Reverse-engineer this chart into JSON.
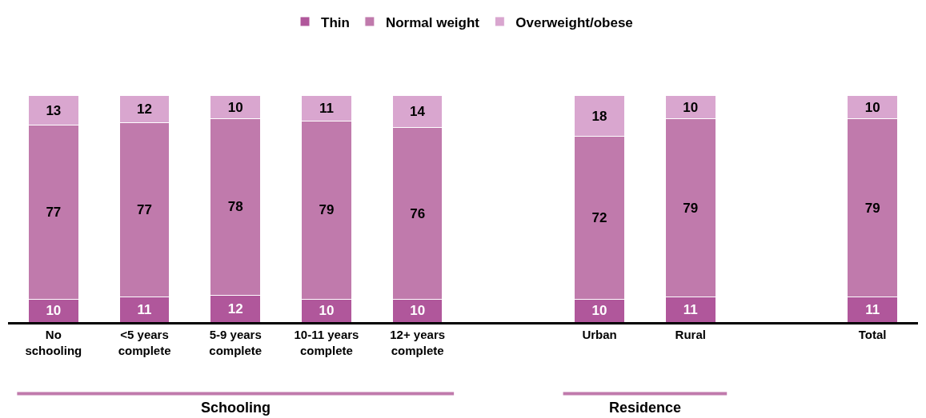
{
  "chart_data": {
    "type": "bar",
    "stacked": true,
    "categories": [
      "No\nschooling",
      "<5 years\ncomplete",
      "5-9 years\ncomplete",
      "10-11 years\ncomplete",
      "12+ years\ncomplete",
      null,
      "Urban",
      "Rural",
      null,
      "Total"
    ],
    "series": [
      {
        "name": "Thin",
        "color": "#b0579b",
        "values": [
          10,
          11,
          12,
          10,
          10,
          null,
          10,
          11,
          null,
          11
        ]
      },
      {
        "name": "Normal weight",
        "color": "#c07aac",
        "values": [
          77,
          77,
          78,
          79,
          76,
          null,
          72,
          79,
          null,
          79
        ]
      },
      {
        "name": "Overweight/obese",
        "color": "#d9a6cf",
        "values": [
          13,
          12,
          10,
          11,
          14,
          null,
          18,
          10,
          null,
          10
        ]
      }
    ],
    "data_labels": true,
    "legend": "top",
    "annotations": [
      "Schooling",
      "Residence"
    ]
  }
}
